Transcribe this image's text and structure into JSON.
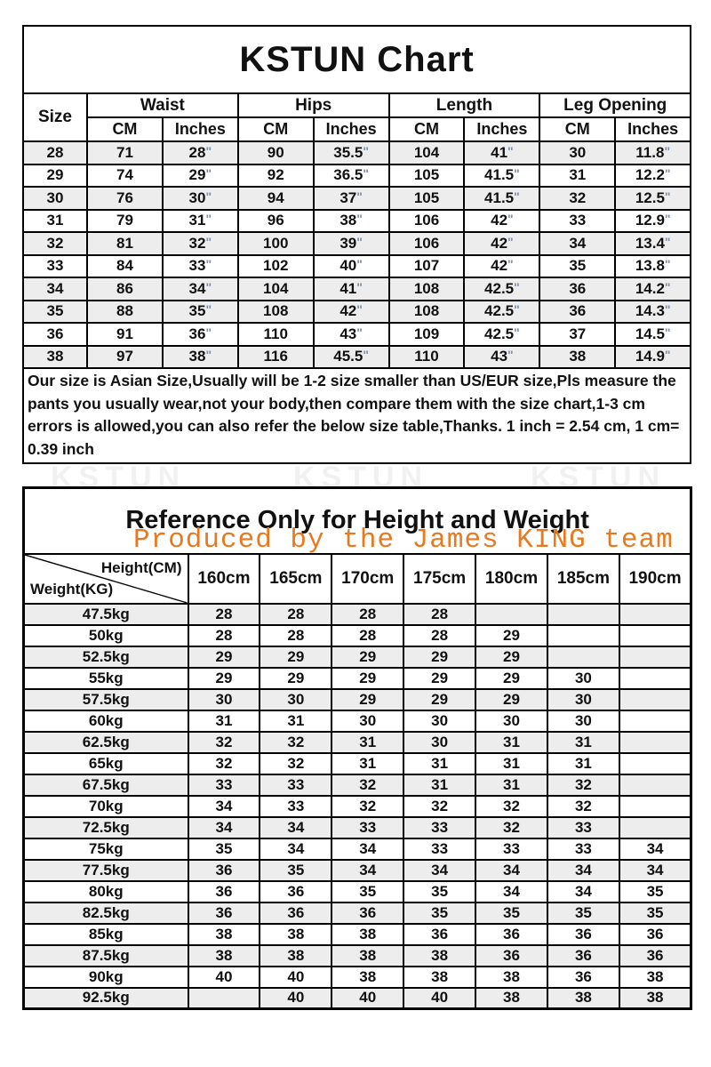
{
  "colors": {
    "stripe": "#ededed",
    "notice_red": "#ff0000",
    "producer_orange": "#e8791e",
    "watermark_gray": "#f1f1f1",
    "border_black": "#000000",
    "inch_blue": "#7d93ad"
  },
  "table1": {
    "title": "KSTUN Chart",
    "size_label": "Size",
    "groups": [
      "Waist",
      "Hips",
      "Length",
      "Leg Opening"
    ],
    "sub_headers": [
      "CM",
      "Inches",
      "CM",
      "Inches",
      "CM",
      "Inches",
      "CM",
      "Inches"
    ],
    "rows": [
      {
        "size": "28",
        "cells": [
          "71",
          "28\"",
          "90",
          "35.5\"",
          "104",
          "41\"",
          "30",
          "11.8\""
        ],
        "shaded": true
      },
      {
        "size": "29",
        "cells": [
          "74",
          "29\"",
          "92",
          "36.5\"",
          "105",
          "41.5\"",
          "31",
          "12.2\""
        ],
        "shaded": false
      },
      {
        "size": "30",
        "cells": [
          "76",
          "30\"",
          "94",
          "37\"",
          "105",
          "41.5\"",
          "32",
          "12.5\""
        ],
        "shaded": true
      },
      {
        "size": "31",
        "cells": [
          "79",
          "31\"",
          "96",
          "38\"",
          "106",
          "42\"",
          "33",
          "12.9\""
        ],
        "shaded": false
      },
      {
        "size": "32",
        "cells": [
          "81",
          "32\"",
          "100",
          "39\"",
          "106",
          "42\"",
          "34",
          "13.4\""
        ],
        "shaded": true
      },
      {
        "size": "33",
        "cells": [
          "84",
          "33\"",
          "102",
          "40\"",
          "107",
          "42\"",
          "35",
          "13.8\""
        ],
        "shaded": false
      },
      {
        "size": "34",
        "cells": [
          "86",
          "34\"",
          "104",
          "41\"",
          "108",
          "42.5\"",
          "36",
          "14.2\""
        ],
        "shaded": true
      },
      {
        "size": "35",
        "cells": [
          "88",
          "35\"",
          "108",
          "42\"",
          "108",
          "42.5\"",
          "36",
          "14.3\""
        ],
        "shaded": true
      },
      {
        "size": "36",
        "cells": [
          "91",
          "36\"",
          "110",
          "43\"",
          "109",
          "42.5\"",
          "37",
          "14.5\""
        ],
        "shaded": false
      },
      {
        "size": "38",
        "cells": [
          "97",
          "38\"",
          "116",
          "45.5\"",
          "110",
          "43\"",
          "38",
          "14.9\""
        ],
        "shaded": true
      }
    ],
    "notice": "Our size is Asian Size,Usually will be 1-2 size smaller than US/EUR size,Pls measure the pants you usually wear,not your body,then compare them with the size chart,1-3 cm errors is allowed,you can also refer the below size table,Thanks. 1 inch = 2.54 cm, 1 cm= 0.39 inch"
  },
  "watermarks": {
    "kstun": "KSTUN",
    "producer": "Produced by the James KING team"
  },
  "table2": {
    "title": "Reference Only for Height and Weight",
    "corner_top": "Height(CM)",
    "corner_bottom": "Weight(KG)",
    "columns": [
      "160cm",
      "165cm",
      "170cm",
      "175cm",
      "180cm",
      "185cm",
      "190cm"
    ],
    "rows": [
      {
        "weight": "47.5kg",
        "values": [
          "28",
          "28",
          "28",
          "28",
          "",
          "",
          ""
        ],
        "shaded": true
      },
      {
        "weight": "50kg",
        "values": [
          "28",
          "28",
          "28",
          "28",
          "29",
          "",
          ""
        ],
        "shaded": false
      },
      {
        "weight": "52.5kg",
        "values": [
          "29",
          "29",
          "29",
          "29",
          "29",
          "",
          ""
        ],
        "shaded": true
      },
      {
        "weight": "55kg",
        "values": [
          "29",
          "29",
          "29",
          "29",
          "29",
          "30",
          ""
        ],
        "shaded": false
      },
      {
        "weight": "57.5kg",
        "values": [
          "30",
          "30",
          "29",
          "29",
          "29",
          "30",
          ""
        ],
        "shaded": true
      },
      {
        "weight": "60kg",
        "values": [
          "31",
          "31",
          "30",
          "30",
          "30",
          "30",
          ""
        ],
        "shaded": false
      },
      {
        "weight": "62.5kg",
        "values": [
          "32",
          "32",
          "31",
          "30",
          "31",
          "31",
          ""
        ],
        "shaded": true
      },
      {
        "weight": "65kg",
        "values": [
          "32",
          "32",
          "31",
          "31",
          "31",
          "31",
          ""
        ],
        "shaded": false
      },
      {
        "weight": "67.5kg",
        "values": [
          "33",
          "33",
          "32",
          "31",
          "31",
          "32",
          ""
        ],
        "shaded": true
      },
      {
        "weight": "70kg",
        "values": [
          "34",
          "33",
          "32",
          "32",
          "32",
          "32",
          ""
        ],
        "shaded": false
      },
      {
        "weight": "72.5kg",
        "values": [
          "34",
          "34",
          "33",
          "33",
          "32",
          "33",
          ""
        ],
        "shaded": true
      },
      {
        "weight": "75kg",
        "values": [
          "35",
          "34",
          "34",
          "33",
          "33",
          "33",
          "34"
        ],
        "shaded": false
      },
      {
        "weight": "77.5kg",
        "values": [
          "36",
          "35",
          "34",
          "34",
          "34",
          "34",
          "34"
        ],
        "shaded": true
      },
      {
        "weight": "80kg",
        "values": [
          "36",
          "36",
          "35",
          "35",
          "34",
          "34",
          "35"
        ],
        "shaded": false
      },
      {
        "weight": "82.5kg",
        "values": [
          "36",
          "36",
          "36",
          "35",
          "35",
          "35",
          "35"
        ],
        "shaded": true
      },
      {
        "weight": "85kg",
        "values": [
          "38",
          "38",
          "38",
          "36",
          "36",
          "36",
          "36"
        ],
        "shaded": false
      },
      {
        "weight": "87.5kg",
        "values": [
          "38",
          "38",
          "38",
          "38",
          "36",
          "36",
          "36"
        ],
        "shaded": true
      },
      {
        "weight": "90kg",
        "values": [
          "40",
          "40",
          "38",
          "38",
          "38",
          "36",
          "38"
        ],
        "shaded": false
      },
      {
        "weight": "92.5kg",
        "values": [
          "",
          "40",
          "40",
          "40",
          "38",
          "38",
          "38"
        ],
        "shaded": true
      }
    ]
  }
}
